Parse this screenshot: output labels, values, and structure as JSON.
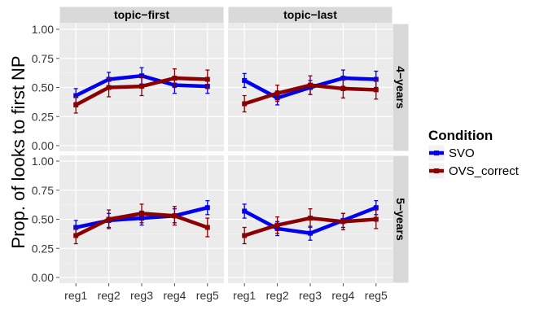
{
  "chart_data": {
    "type": "line",
    "ylabel": "Prop. of looks to first NP",
    "xlabel": "",
    "categories": [
      "reg1",
      "reg2",
      "reg3",
      "reg4",
      "reg5"
    ],
    "yticks": [
      "0.00",
      "0.25",
      "0.50",
      "0.75",
      "1.00"
    ],
    "ylim": [
      0,
      1
    ],
    "column_strips": [
      "topic−first",
      "topic−last"
    ],
    "row_strips": [
      "4−years",
      "5−years"
    ],
    "legend": {
      "title": "Condition",
      "position": "right",
      "entries": [
        {
          "name": "SVO",
          "color": "#0000ee"
        },
        {
          "name": "OVS_correct",
          "color": "#8b0000"
        }
      ]
    },
    "grid": true,
    "panels": [
      {
        "row": "4−years",
        "col": "topic−first",
        "series": [
          {
            "name": "SVO",
            "values": [
              0.43,
              0.57,
              0.6,
              0.52,
              0.51
            ],
            "ci_low": [
              0.37,
              0.5,
              0.53,
              0.45,
              0.45
            ],
            "ci_high": [
              0.49,
              0.63,
              0.67,
              0.59,
              0.57
            ]
          },
          {
            "name": "OVS_correct",
            "values": [
              0.35,
              0.5,
              0.51,
              0.58,
              0.57
            ],
            "ci_low": [
              0.28,
              0.42,
              0.43,
              0.5,
              0.49
            ],
            "ci_high": [
              0.42,
              0.58,
              0.59,
              0.66,
              0.65
            ]
          }
        ]
      },
      {
        "row": "4−years",
        "col": "topic−last",
        "series": [
          {
            "name": "SVO",
            "values": [
              0.56,
              0.41,
              0.5,
              0.58,
              0.57
            ],
            "ci_low": [
              0.5,
              0.35,
              0.44,
              0.51,
              0.5
            ],
            "ci_high": [
              0.62,
              0.47,
              0.56,
              0.65,
              0.64
            ]
          },
          {
            "name": "OVS_correct",
            "values": [
              0.36,
              0.45,
              0.52,
              0.49,
              0.48
            ],
            "ci_low": [
              0.29,
              0.38,
              0.44,
              0.41,
              0.4
            ],
            "ci_high": [
              0.43,
              0.52,
              0.6,
              0.57,
              0.56
            ]
          }
        ]
      },
      {
        "row": "5−years",
        "col": "topic−first",
        "series": [
          {
            "name": "SVO",
            "values": [
              0.43,
              0.49,
              0.51,
              0.53,
              0.6
            ],
            "ci_low": [
              0.37,
              0.43,
              0.45,
              0.47,
              0.54
            ],
            "ci_high": [
              0.49,
              0.55,
              0.57,
              0.59,
              0.66
            ]
          },
          {
            "name": "OVS_correct",
            "values": [
              0.36,
              0.5,
              0.55,
              0.53,
              0.43
            ],
            "ci_low": [
              0.29,
              0.42,
              0.47,
              0.45,
              0.35
            ],
            "ci_high": [
              0.43,
              0.58,
              0.63,
              0.61,
              0.51
            ]
          }
        ]
      },
      {
        "row": "5−years",
        "col": "topic−last",
        "series": [
          {
            "name": "SVO",
            "values": [
              0.57,
              0.42,
              0.38,
              0.49,
              0.6
            ],
            "ci_low": [
              0.51,
              0.36,
              0.32,
              0.43,
              0.54
            ],
            "ci_high": [
              0.63,
              0.48,
              0.44,
              0.55,
              0.66
            ]
          },
          {
            "name": "OVS_correct",
            "values": [
              0.36,
              0.45,
              0.51,
              0.48,
              0.5
            ],
            "ci_low": [
              0.29,
              0.38,
              0.43,
              0.41,
              0.42
            ],
            "ci_high": [
              0.43,
              0.52,
              0.59,
              0.55,
              0.58
            ]
          }
        ]
      }
    ]
  }
}
